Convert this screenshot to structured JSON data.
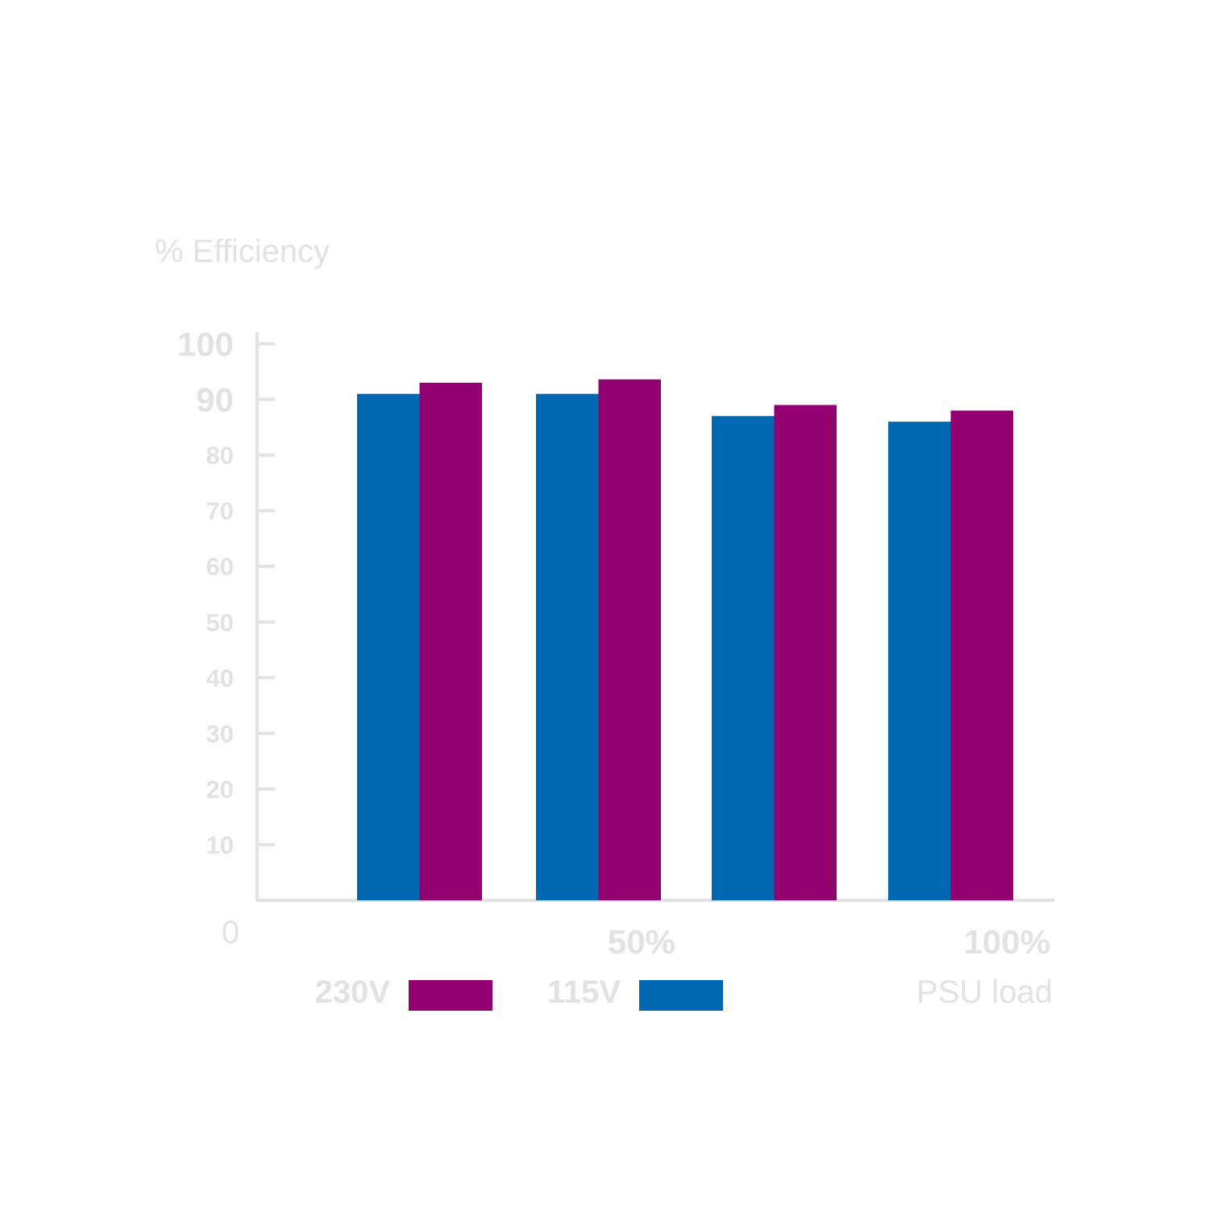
{
  "chart_data": {
    "type": "bar",
    "ylabel": "% Efficiency",
    "xlabel": "PSU load",
    "ylim": [
      0,
      100
    ],
    "y_ticks": [
      10,
      20,
      30,
      40,
      50,
      60,
      70,
      80,
      90,
      100
    ],
    "zero_label": "0",
    "categories": [
      "",
      "50%",
      "",
      "100%"
    ],
    "series": [
      {
        "name": "115V",
        "color": "#0068b0",
        "values": [
          91,
          91,
          87,
          86
        ]
      },
      {
        "name": "230V",
        "color": "#930070",
        "values": [
          93,
          93.6,
          89,
          88
        ]
      }
    ],
    "legend": {
      "placement": "bottom",
      "order": [
        "230V",
        "115V"
      ]
    },
    "axis_color": "#e2e2e2",
    "grid": false
  }
}
